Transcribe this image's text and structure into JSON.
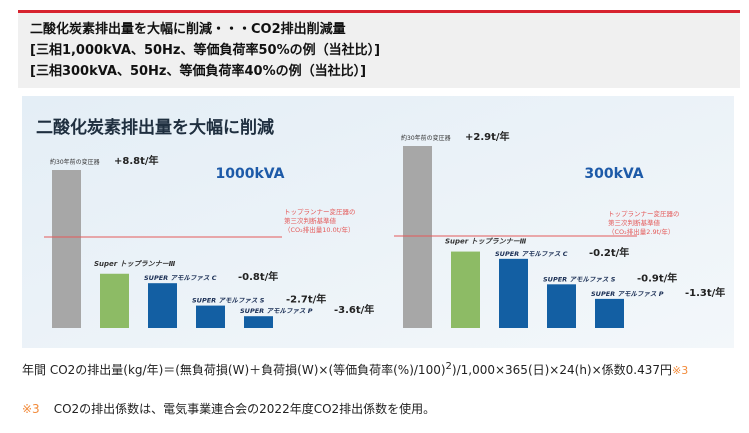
{
  "header": {
    "line1": "二酸化炭素排出量を大幅に削減・・・CO2排出削減量",
    "line2": "[三相1,000kVA、50Hz、等価負荷率50%の例（当社比）]",
    "line3": "[三相300kVA、50Hz、等価負荷率40%の例（当社比）]"
  },
  "figure_title": "二酸化炭素排出量を大幅に削減",
  "chart_data": [
    {
      "type": "bar",
      "title": "1000kVA",
      "categories": [
        "約30年前の変圧器",
        "Super トップランナーⅢ",
        "SUPER アモルファス C",
        "SUPER アモルファス S",
        "SUPER アモルファス P"
      ],
      "value_labels": [
        "+8.8t/年",
        "",
        "-0.8t/年",
        "-2.7t/年",
        "-3.6t/年"
      ],
      "values": [
        13.4,
        4.6,
        3.8,
        1.9,
        1.0
      ],
      "annotation": [
        "トップランナー変圧器の",
        "第三次判断基準値",
        "（CO₂排出量10.0t/年）"
      ],
      "ylim": [
        0,
        14
      ]
    },
    {
      "type": "bar",
      "title": "300kVA",
      "categories": [
        "約30年前の変圧器",
        "Super トップランナーⅢ",
        "SUPER アモルファス C",
        "SUPER アモルファス S",
        "SUPER アモルファス P"
      ],
      "value_labels": [
        "+2.9t/年",
        "",
        "-0.2t/年",
        "-0.9t/年",
        "-1.3t/年"
      ],
      "values": [
        5.0,
        2.1,
        1.9,
        1.2,
        0.8
      ],
      "annotation": [
        "トップランナー変圧器の",
        "第三次判断基準値",
        "（CO₂排出量2.9t/年）"
      ],
      "ylim": [
        0,
        5.4
      ]
    }
  ],
  "formula": {
    "text_a": "年間 CO2の排出量(kg/年)＝(無負荷損(W)＋負荷損(W)×(等価負荷率(%)/100)",
    "sup": "2",
    "text_b": ")/1,000×365(日)×24(h)×係数0.437円",
    "ref": "※3"
  },
  "note": {
    "mark": "※3",
    "text": "CO2の排出係数は、電気事業連合会の2022年度CO2排出係数を使用。"
  },
  "colors": {
    "accent": "#d7232f",
    "old": "#a7a7a7",
    "green": "#8dbb65",
    "blue": "#135fa3",
    "refline": "#e45a5a",
    "kva": "#1d5aa8"
  }
}
